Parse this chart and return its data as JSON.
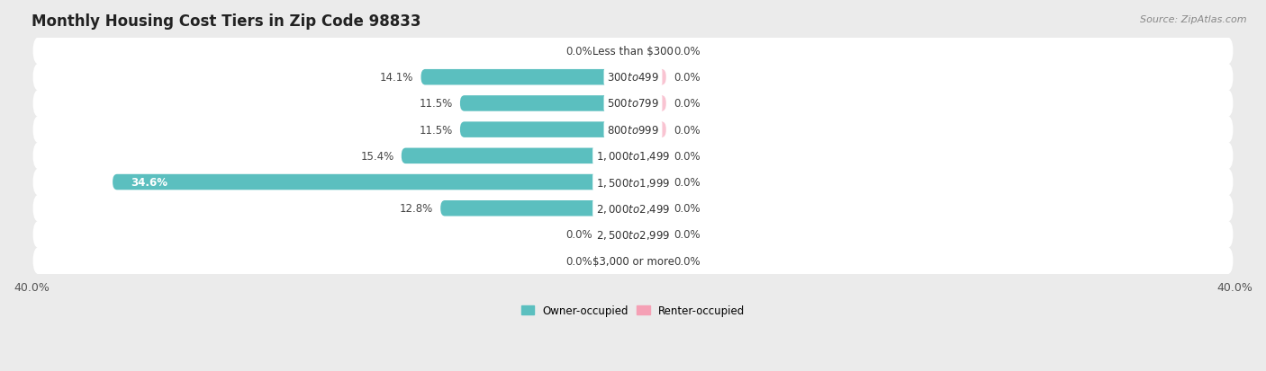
{
  "title": "Monthly Housing Cost Tiers in Zip Code 98833",
  "source": "Source: ZipAtlas.com",
  "categories": [
    "Less than $300",
    "$300 to $499",
    "$500 to $799",
    "$800 to $999",
    "$1,000 to $1,499",
    "$1,500 to $1,999",
    "$2,000 to $2,499",
    "$2,500 to $2,999",
    "$3,000 or more"
  ],
  "owner_values": [
    0.0,
    14.1,
    11.5,
    11.5,
    15.4,
    34.6,
    12.8,
    0.0,
    0.0
  ],
  "renter_values": [
    0.0,
    0.0,
    0.0,
    0.0,
    0.0,
    0.0,
    0.0,
    0.0,
    0.0
  ],
  "owner_color": "#5bbfbf",
  "renter_color": "#f5a0b5",
  "owner_stub_color": "#a8dede",
  "renter_stub_color": "#f9c4d2",
  "axis_max": 40.0,
  "background_color": "#ebebeb",
  "row_bg_color": "#f7f7f7",
  "title_fontsize": 12,
  "label_fontsize": 8.5,
  "tick_fontsize": 9,
  "stub_size": 2.2
}
